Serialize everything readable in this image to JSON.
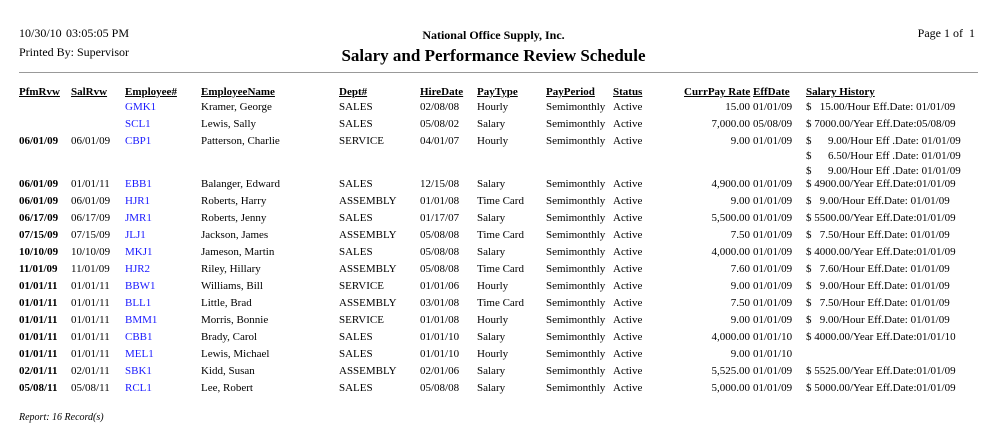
{
  "header": {
    "date": "10/30/10",
    "time": "03:05:05 PM",
    "printed_by": "Printed By: Supervisor",
    "company": "National Office Supply, Inc.",
    "title": "Salary and Performance Review Schedule",
    "page": "Page 1 of  1"
  },
  "columns": {
    "pfm": "PfmRvw",
    "sal": "SalRvw",
    "emp": "Employee#",
    "name": "EmployeeName",
    "dept": "Dept#",
    "hire": "HireDate",
    "paytype": "PayType",
    "payperiod": "PayPeriod",
    "status": "Status",
    "rate": "CurrPay Rate",
    "eff": "EffDate",
    "hist": "Salary History"
  },
  "rows": [
    {
      "pfm": "",
      "sal": "",
      "emp": "GMK1",
      "name": "Kramer, George",
      "dept": "SALES",
      "hire": "02/08/08",
      "paytype": "Hourly",
      "payperiod": "Semimonthly",
      "status": "Active",
      "rate": "15.00",
      "eff": "01/01/09",
      "hist": [
        "$   15.00/Hour Eff.Date: 01/01/09"
      ]
    },
    {
      "pfm": "",
      "sal": "",
      "emp": "SCL1",
      "name": "Lewis, Sally",
      "dept": "SALES",
      "hire": "05/08/02",
      "paytype": "Salary",
      "payperiod": "Semimonthly",
      "status": "Active",
      "rate": "7,000.00",
      "eff": "05/08/09",
      "hist": [
        "$ 7000.00/Year Eff.Date:05/08/09"
      ]
    },
    {
      "pfm": "06/01/09",
      "sal": "06/01/09",
      "emp": "CBP1",
      "name": "Patterson, Charlie",
      "dept": "SERVICE",
      "hire": "04/01/07",
      "paytype": "Hourly",
      "payperiod": "Semimonthly",
      "status": "Active",
      "rate": "9.00",
      "eff": "01/01/09",
      "hist": [
        "$      9.00/Hour Eff .Date: 01/01/09",
        "$      6.50/Hour Eff .Date: 01/01/09",
        "$      9.00/Hour Eff .Date: 01/01/09"
      ]
    },
    {
      "pfm": "06/01/09",
      "sal": "01/01/11",
      "emp": "EBB1",
      "name": "Balanger, Edward",
      "dept": "SALES",
      "hire": "12/15/08",
      "paytype": "Salary",
      "payperiod": "Semimonthly",
      "status": "Active",
      "rate": "4,900.00",
      "eff": "01/01/09",
      "hist": [
        "$ 4900.00/Year Eff.Date:01/01/09"
      ]
    },
    {
      "pfm": "06/01/09",
      "sal": "06/01/09",
      "emp": "HJR1",
      "name": "Roberts, Harry",
      "dept": "ASSEMBLY",
      "hire": "01/01/08",
      "paytype": "Time Card",
      "payperiod": "Semimonthly",
      "status": "Active",
      "rate": "9.00",
      "eff": "01/01/09",
      "hist": [
        "$   9.00/Hour Eff.Date: 01/01/09"
      ]
    },
    {
      "pfm": "06/17/09",
      "sal": "06/17/09",
      "emp": "JMR1",
      "name": "Roberts, Jenny",
      "dept": "SALES",
      "hire": "01/17/07",
      "paytype": "Salary",
      "payperiod": "Semimonthly",
      "status": "Active",
      "rate": "5,500.00",
      "eff": "01/01/09",
      "hist": [
        "$ 5500.00/Year Eff.Date:01/01/09"
      ]
    },
    {
      "pfm": "07/15/09",
      "sal": "07/15/09",
      "emp": "JLJ1",
      "name": "Jackson, James",
      "dept": "ASSEMBLY",
      "hire": "05/08/08",
      "paytype": "Time Card",
      "payperiod": "Semimonthly",
      "status": "Active",
      "rate": "7.50",
      "eff": "01/01/09",
      "hist": [
        "$   7.50/Hour Eff.Date: 01/01/09"
      ]
    },
    {
      "pfm": "10/10/09",
      "sal": "10/10/09",
      "emp": "MKJ1",
      "name": "Jameson, Martin",
      "dept": "SALES",
      "hire": "05/08/08",
      "paytype": "Salary",
      "payperiod": "Semimonthly",
      "status": "Active",
      "rate": "4,000.00",
      "eff": "01/01/09",
      "hist": [
        "$ 4000.00/Year Eff.Date:01/01/09"
      ]
    },
    {
      "pfm": "11/01/09",
      "sal": "11/01/09",
      "emp": "HJR2",
      "name": "Riley, Hillary",
      "dept": "ASSEMBLY",
      "hire": "05/08/08",
      "paytype": "Time Card",
      "payperiod": "Semimonthly",
      "status": "Active",
      "rate": "7.60",
      "eff": "01/01/09",
      "hist": [
        "$   7.60/Hour Eff.Date: 01/01/09"
      ]
    },
    {
      "pfm": "01/01/11",
      "sal": "01/01/11",
      "emp": "BBW1",
      "name": "Williams, Bill",
      "dept": "SERVICE",
      "hire": "01/01/06",
      "paytype": "Hourly",
      "payperiod": "Semimonthly",
      "status": "Active",
      "rate": "9.00",
      "eff": "01/01/09",
      "hist": [
        "$   9.00/Hour Eff.Date: 01/01/09"
      ]
    },
    {
      "pfm": "01/01/11",
      "sal": "01/01/11",
      "emp": "BLL1",
      "name": "Little, Brad",
      "dept": "ASSEMBLY",
      "hire": "03/01/08",
      "paytype": "Time Card",
      "payperiod": "Semimonthly",
      "status": "Active",
      "rate": "7.50",
      "eff": "01/01/09",
      "hist": [
        "$   7.50/Hour Eff.Date: 01/01/09"
      ]
    },
    {
      "pfm": "01/01/11",
      "sal": "01/01/11",
      "emp": "BMM1",
      "name": "Morris, Bonnie",
      "dept": "SERVICE",
      "hire": "01/01/08",
      "paytype": "Hourly",
      "payperiod": "Semimonthly",
      "status": "Active",
      "rate": "9.00",
      "eff": "01/01/09",
      "hist": [
        "$   9.00/Hour Eff.Date: 01/01/09"
      ]
    },
    {
      "pfm": "01/01/11",
      "sal": "01/01/11",
      "emp": "CBB1",
      "name": "Brady, Carol",
      "dept": "SALES",
      "hire": "01/01/10",
      "paytype": "Salary",
      "payperiod": "Semimonthly",
      "status": "Active",
      "rate": "4,000.00",
      "eff": "01/01/10",
      "hist": [
        "$ 4000.00/Year Eff.Date:01/01/10"
      ]
    },
    {
      "pfm": "01/01/11",
      "sal": "01/01/11",
      "emp": "MEL1",
      "name": "Lewis, Michael",
      "dept": "SALES",
      "hire": "01/01/10",
      "paytype": "Hourly",
      "payperiod": "Semimonthly",
      "status": "Active",
      "rate": "9.00",
      "eff": "01/01/10",
      "hist": []
    },
    {
      "pfm": "02/01/11",
      "sal": "02/01/11",
      "emp": "SBK1",
      "name": "Kidd, Susan",
      "dept": "ASSEMBLY",
      "hire": "02/01/06",
      "paytype": "Salary",
      "payperiod": "Semimonthly",
      "status": "Active",
      "rate": "5,525.00",
      "eff": "01/01/09",
      "hist": [
        "$ 5525.00/Year Eff.Date:01/01/09"
      ]
    },
    {
      "pfm": "05/08/11",
      "sal": "05/08/11",
      "emp": "RCL1",
      "name": "Lee, Robert",
      "dept": "SALES",
      "hire": "05/08/08",
      "paytype": "Salary",
      "payperiod": "Semimonthly",
      "status": "Active",
      "rate": "5,000.00",
      "eff": "01/01/09",
      "hist": [
        "$ 5000.00/Year Eff.Date:01/01/09"
      ]
    }
  ],
  "footer": {
    "summary": "Report: 16 Record(s)"
  }
}
